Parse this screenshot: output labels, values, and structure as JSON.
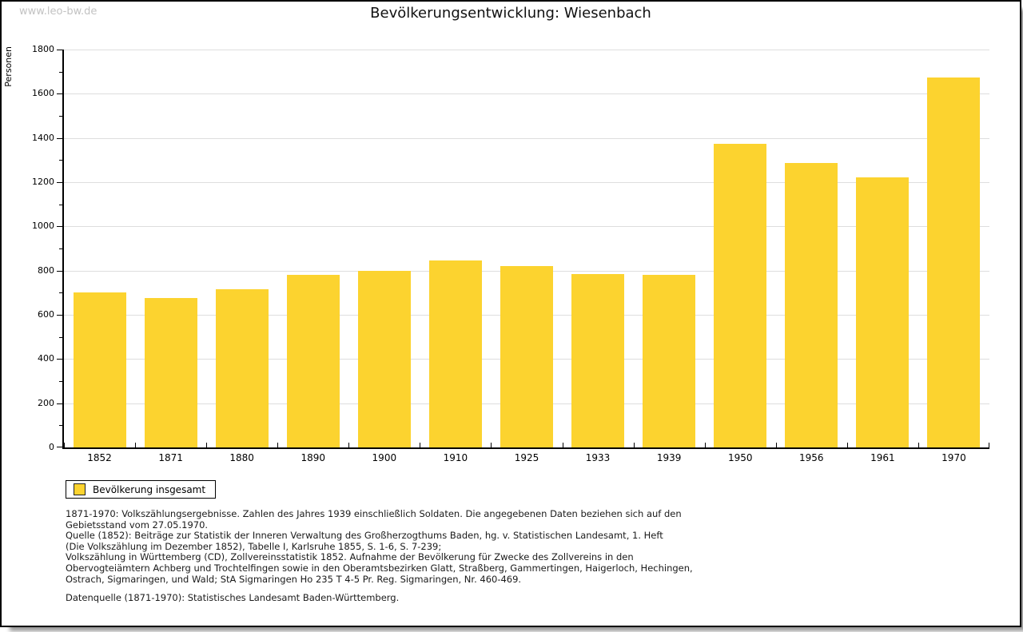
{
  "watermark": "www.leo-bw.de",
  "header": {
    "title": "Bevölkerungsentwicklung: Wiesenbach"
  },
  "chart_data": {
    "type": "bar",
    "title": "Bevölkerungsentwicklung: Wiesenbach",
    "xlabel": "",
    "ylabel": "Personen",
    "categories": [
      "1852",
      "1871",
      "1880",
      "1890",
      "1900",
      "1910",
      "1925",
      "1933",
      "1939",
      "1950",
      "1956",
      "1961",
      "1970"
    ],
    "values": [
      700,
      675,
      715,
      780,
      800,
      845,
      820,
      785,
      780,
      1375,
      1285,
      1220,
      1675
    ],
    "ylim": [
      0,
      1800
    ],
    "ytick_step": 200,
    "ytick_minor_step": 100,
    "grid": true,
    "legend_position": "bottom-left",
    "bar_color": "#fcd32f",
    "grid_color": "#dedede",
    "axis_color": "#000000"
  },
  "legend": {
    "items": [
      {
        "label": "Bevölkerung insgesamt",
        "color": "#fcd32f"
      }
    ]
  },
  "footnotes": {
    "lines": [
      "1871-1970: Volkszählungsergebnisse. Zahlen des Jahres 1939 einschließlich Soldaten. Die angegebenen Daten beziehen sich auf den",
      "Gebietsstand vom 27.05.1970.",
      "Quelle (1852): Beiträge zur Statistik der Inneren Verwaltung des Großherzogthums Baden, hg. v. Statistischen Landesamt, 1. Heft",
      "(Die Volkszählung im Dezember 1852), Tabelle I, Karlsruhe 1855, S. 1-6, S. 7-239;",
      "Volkszählung in Württemberg (CD), Zollvereinsstatistik 1852. Aufnahme der Bevölkerung für Zwecke des Zollvereins in den",
      "Obervogteiämtern Achberg und Trochtelfingen sowie in den Oberamtsbezirken Glatt, Straßberg, Gammertingen, Haigerloch, Hechingen,",
      "Ostrach, Sigmaringen, und Wald; StA Sigmaringen Ho 235 T 4-5 Pr. Reg. Sigmaringen, Nr. 460-469."
    ],
    "datasource": "Datenquelle (1871-1970): Statistisches Landesamt Baden-Württemberg."
  }
}
